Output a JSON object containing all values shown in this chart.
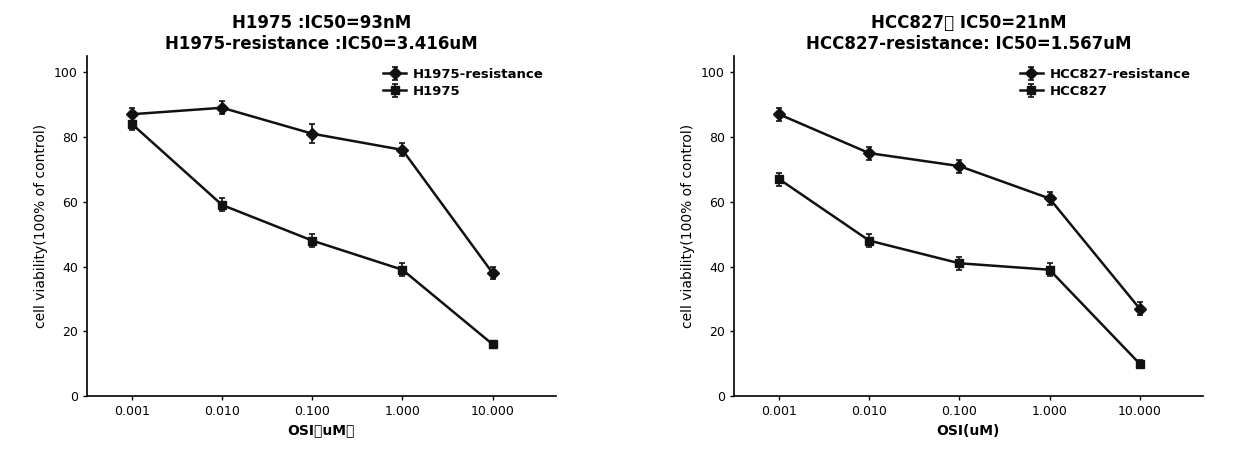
{
  "left": {
    "title_line1": "H1975 :IC50=93nM",
    "title_line2": "H1975-resistance :IC50=3.416uM",
    "xlabel": "OSI（uM）",
    "ylabel": "cell viability(100% of control)",
    "x_tick_labels": [
      "0.001",
      "0.010",
      "0.100",
      "1.000",
      "10.000"
    ],
    "resistance_y": [
      87,
      89,
      81,
      76,
      38
    ],
    "resistance_yerr": [
      2,
      2,
      3,
      2,
      2
    ],
    "sensitive_y": [
      84,
      59,
      48,
      39,
      16
    ],
    "sensitive_yerr": [
      2,
      2,
      2,
      2,
      1
    ],
    "ylim": [
      0,
      105
    ],
    "yticks": [
      0,
      20,
      40,
      60,
      80,
      100
    ],
    "legend_resistance": "H1975-resistance",
    "legend_sensitive": "H1975"
  },
  "right": {
    "title_line1": "HCC827： IC50=21nM",
    "title_line2": "HCC827-resistance: IC50=1.567uM",
    "xlabel": "OSI(uM)",
    "ylabel": "cell viability(100% of control)",
    "x_tick_labels": [
      "0.001",
      "0.010",
      "0.100",
      "1.000",
      "10.000"
    ],
    "resistance_y": [
      87,
      75,
      71,
      61,
      27
    ],
    "resistance_yerr": [
      2,
      2,
      2,
      2,
      2
    ],
    "sensitive_y": [
      67,
      48,
      41,
      39,
      10
    ],
    "sensitive_yerr": [
      2,
      2,
      2,
      2,
      1
    ],
    "ylim": [
      0,
      105
    ],
    "yticks": [
      0,
      20,
      40,
      60,
      80,
      100
    ],
    "legend_resistance": "HCC827-resistance",
    "legend_sensitive": "HCC827"
  },
  "background_color": "#ffffff",
  "line_color": "#111111",
  "marker_resistance": "D",
  "marker_sensitive": "s",
  "markersize": 6,
  "linewidth": 1.8,
  "title_fontsize": 12,
  "label_fontsize": 10,
  "tick_fontsize": 9,
  "legend_fontsize": 9.5
}
